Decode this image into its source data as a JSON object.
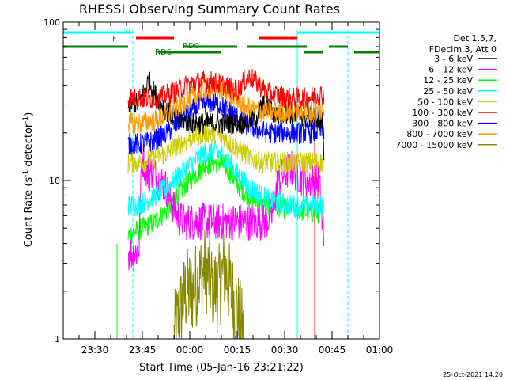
{
  "chart_data": {
    "type": "line",
    "title": "RHESSI Observing Summary Count Rates",
    "xlabel": "Start Time (05-Jan-16 23:21:22)",
    "ylabel_main": "Count Rate (s",
    "ylabel_exp1": "-1",
    "ylabel_mid": " detector",
    "ylabel_exp2": "-1",
    "ylabel_end": ")",
    "y_scale": "log",
    "ylim": [
      1,
      100
    ],
    "y_tick_labels": [
      {
        "value": 1,
        "label": "1"
      },
      {
        "value": 10,
        "label": "10"
      },
      {
        "value": 100,
        "label": "100"
      }
    ],
    "x_axis": {
      "start_minutes": -40,
      "end_minutes": 60
    },
    "x_tick_labels": [
      {
        "value": -30,
        "label": "23:30"
      },
      {
        "value": -15,
        "label": "23:45"
      },
      {
        "value": 0,
        "label": "00:00"
      },
      {
        "value": 15,
        "label": "00:15"
      },
      {
        "value": 30,
        "label": "00:30"
      },
      {
        "value": 45,
        "label": "00:45"
      },
      {
        "value": 60,
        "label": "01:00"
      }
    ],
    "legend": {
      "header": [
        "Det 1,5,7,",
        "FDecim 3, Att 0"
      ],
      "placement": "right"
    },
    "series": [
      {
        "name": "3 - 6 keV",
        "color": "#000000",
        "x": [
          -19.5,
          -18,
          -16,
          -14,
          -13,
          -11,
          -9,
          -7,
          -5,
          -3,
          -1,
          1,
          3,
          5,
          7,
          9,
          11,
          13,
          15,
          17,
          19,
          21,
          23,
          25,
          27,
          29,
          31,
          33,
          35,
          37,
          39,
          40,
          41,
          42,
          42.5
        ],
        "y": [
          29,
          30,
          31,
          38,
          43,
          35,
          31,
          27,
          25,
          24,
          23.5,
          23,
          23,
          23,
          23,
          23,
          23,
          23,
          23,
          23,
          24,
          25,
          30,
          29,
          26,
          26,
          27,
          26,
          26,
          25,
          25,
          25,
          24,
          24,
          14
        ]
      },
      {
        "name": "6 - 12 keV",
        "color": "#ff00ff",
        "x": [
          -19.5,
          -17,
          -16,
          -15,
          -14,
          -13,
          -12,
          -11,
          -10,
          -8,
          -6,
          -4,
          -2,
          0,
          2,
          4,
          6,
          8,
          10,
          12,
          14,
          16,
          18,
          20,
          22,
          24,
          26,
          28,
          30,
          32,
          34,
          36,
          38,
          40,
          41,
          42,
          42.5
        ],
        "y": [
          3.5,
          3.5,
          3.8,
          14,
          12,
          11,
          11.5,
          11,
          10,
          9.5,
          7.5,
          6,
          5.5,
          5.5,
          5.5,
          5.5,
          5.5,
          5.5,
          5.5,
          5.5,
          5.5,
          5.5,
          5.5,
          5.5,
          5.5,
          5.5,
          6,
          10,
          11,
          12,
          11,
          10,
          10,
          10,
          9.5,
          4.5,
          4.5
        ]
      },
      {
        "name": "12 - 25 keV",
        "color": "#00ff00",
        "x": [
          -19.5,
          -17,
          -15,
          -13,
          -11,
          -9,
          -7,
          -5,
          -3,
          -1,
          1,
          3,
          5,
          7,
          9,
          11,
          13,
          15,
          17,
          19,
          21,
          23,
          25,
          27,
          29,
          31,
          33,
          35,
          37,
          39,
          41,
          42.5
        ],
        "y": [
          4.5,
          4.8,
          5,
          5.2,
          5.5,
          6,
          6.5,
          7.5,
          8.5,
          9.5,
          10.5,
          11.5,
          12.5,
          13,
          13,
          12.5,
          11,
          9.5,
          8.5,
          8,
          7.5,
          7,
          7,
          7,
          6.8,
          6.5,
          6.5,
          6.5,
          6.3,
          6.3,
          6.2,
          6
        ]
      },
      {
        "name": "25 - 50 keV",
        "color": "#00ffff",
        "x": [
          -19.5,
          -17,
          -15,
          -13,
          -11,
          -9,
          -7,
          -5,
          -3,
          -1,
          1,
          3,
          5,
          7,
          9,
          11,
          13,
          15,
          17,
          19,
          21,
          23,
          25,
          27,
          29,
          31,
          33,
          35,
          37,
          39,
          41,
          42.5
        ],
        "y": [
          7,
          7,
          7.2,
          7.5,
          8,
          8.5,
          9,
          10,
          11,
          12,
          13,
          14,
          15,
          15.5,
          15,
          14,
          12.5,
          11,
          10,
          9,
          8.5,
          8,
          7.5,
          7.3,
          7.2,
          7,
          7,
          7,
          7,
          7,
          7,
          7
        ]
      },
      {
        "name": "50 - 100 keV",
        "color": "#ffff00",
        "display_color": "#cccc00",
        "x": [
          -19.5,
          -17,
          -15,
          -13,
          -11,
          -9,
          -7,
          -5,
          -3,
          -1,
          1,
          3,
          5,
          7,
          9,
          11,
          13,
          15,
          17,
          19,
          21,
          23,
          25,
          27,
          29,
          31,
          33,
          35,
          37,
          39,
          41,
          42.5
        ],
        "y": [
          13,
          13,
          13,
          13.5,
          14,
          14.5,
          15,
          16,
          17,
          18,
          19,
          19.5,
          20,
          20,
          19.5,
          18.5,
          17,
          16,
          15,
          14,
          13.5,
          13,
          13,
          13,
          13,
          13,
          13,
          13,
          13,
          13,
          13,
          13
        ]
      },
      {
        "name": "100 - 300 keV",
        "color": "#ff0000",
        "x": [
          -19.5,
          -17,
          -15,
          -13,
          -11,
          -9,
          -7,
          -5,
          -3,
          -1,
          1,
          3,
          5,
          7,
          9,
          11,
          13,
          15,
          17,
          19,
          21,
          23,
          25,
          27,
          29,
          31,
          33,
          35,
          37,
          39,
          41,
          42.5
        ],
        "y": [
          33,
          34,
          33,
          33,
          33,
          34,
          35,
          36,
          38,
          40,
          41,
          42,
          42,
          42,
          41,
          40,
          38,
          37,
          42,
          45,
          42,
          38,
          36,
          35,
          34,
          33,
          33,
          33,
          33,
          34,
          35,
          35
        ]
      },
      {
        "name": "300 - 800 keV",
        "color": "#0000ff",
        "x": [
          -19.5,
          -17,
          -15,
          -13,
          -11,
          -9,
          -7,
          -5,
          -3,
          -1,
          1,
          3,
          5,
          7,
          9,
          11,
          13,
          15,
          17,
          19,
          21,
          23,
          25,
          27,
          29,
          31,
          33,
          35,
          37,
          39,
          41,
          42.5
        ],
        "y": [
          17,
          17,
          17,
          17.5,
          18,
          19,
          20,
          22,
          24,
          26,
          28,
          29.5,
          30.5,
          31,
          30.5,
          29,
          27,
          25,
          23,
          22,
          21,
          20.5,
          20,
          20,
          20,
          20,
          20,
          20,
          20,
          20,
          20.5,
          21
        ]
      },
      {
        "name": "800 - 7000 keV",
        "color": "#ff9900",
        "x": [
          -19.5,
          -17,
          -15,
          -13,
          -11,
          -9,
          -7,
          -5,
          -3,
          -1,
          1,
          3,
          5,
          7,
          9,
          11,
          13,
          15,
          17,
          19,
          21,
          23,
          25,
          27,
          29,
          31,
          33,
          35,
          37,
          39,
          41,
          42.5
        ],
        "y": [
          23,
          23,
          23,
          23.5,
          24,
          25,
          26,
          28,
          30,
          32,
          34,
          36,
          37.5,
          38,
          37.5,
          36,
          34,
          32,
          30,
          29,
          28,
          27,
          27,
          27,
          27,
          27,
          27,
          27,
          27,
          27,
          27.5,
          28
        ]
      },
      {
        "name": "7000 - 15000 keV",
        "color": "#888800",
        "x": [
          -5,
          -3,
          -1,
          1,
          3,
          5,
          7,
          9,
          11,
          13,
          15,
          17
        ],
        "y": [
          1,
          1.5,
          2,
          2,
          2.4,
          2.8,
          2.2,
          2,
          2.8,
          2,
          1.5,
          1
        ]
      }
    ],
    "overlays": {
      "N_label": "N",
      "F_label": "F",
      "RD0_label": "RD0",
      "RD6_label": "RD6",
      "N_bars": [
        [
          -40,
          -18
        ],
        [
          34,
          60
        ]
      ],
      "F_bars": [
        [
          -17,
          -5
        ],
        [
          22,
          34
        ]
      ],
      "RD0_bars": [
        [
          -40,
          -19.5
        ],
        [
          -2,
          15
        ],
        [
          18,
          37
        ],
        [
          44,
          50
        ]
      ],
      "RD6_bars": [
        [
          -10,
          10
        ],
        [
          36,
          42
        ],
        [
          52,
          60
        ]
      ],
      "cyan_solid_x": [
        -40,
        34
      ],
      "cyan_dashed_x": [
        -18,
        50
      ],
      "red_vline_x": 39.5,
      "green_vline_x": -23
    },
    "grid": false
  },
  "footer_date": "25-Oct-2021 14:20"
}
